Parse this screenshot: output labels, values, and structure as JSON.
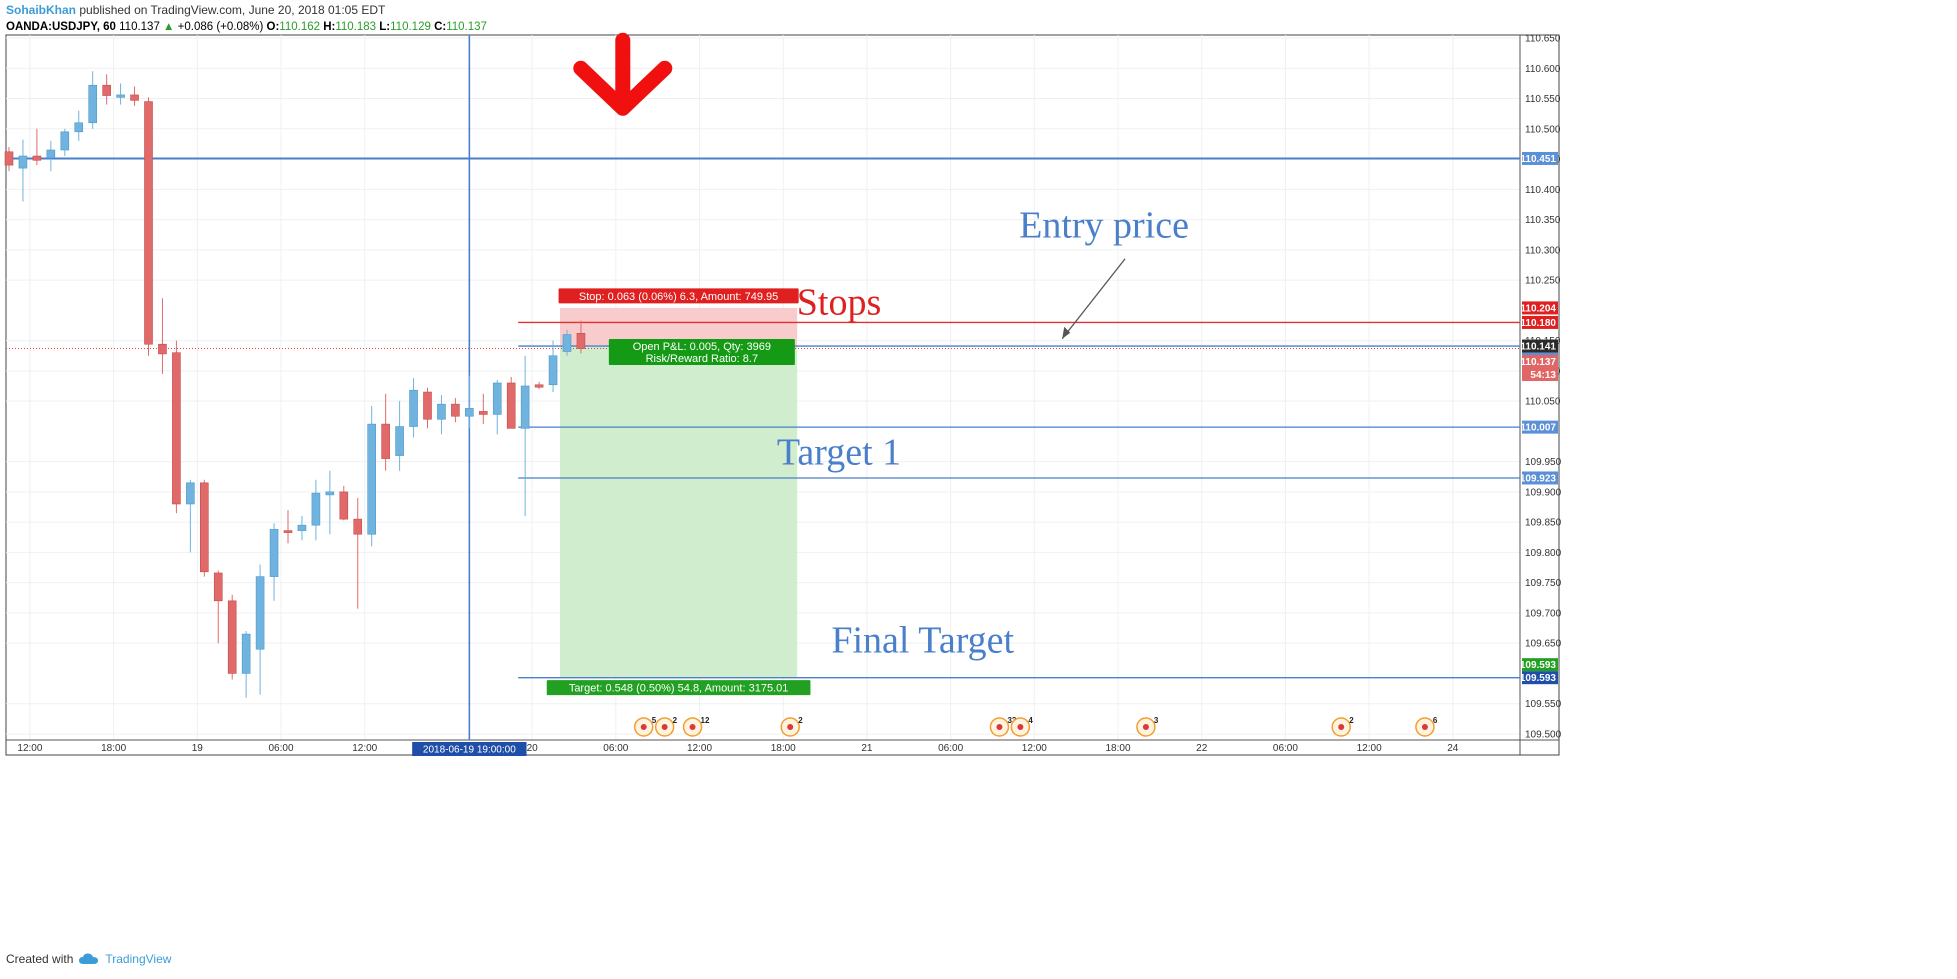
{
  "header": {
    "user": "SohaibKhan",
    "published": "published on TradingView.com, June 20, 2018 01:05 EDT",
    "symbol": "OANDA:USDJPY, 60",
    "last": "110.137",
    "change": "+0.086 (+0.08%)",
    "o_label": "O:",
    "o_value": "110.162",
    "h_label": "H:",
    "h_value": "110.183",
    "l_label": "L:",
    "l_value": "110.129",
    "c_label": "C:",
    "c_value": "110.137"
  },
  "footer": {
    "created_with": "Created with",
    "brand": "TradingView"
  },
  "chart_data": {
    "type": "candlestick",
    "ylim": [
      109.49,
      110.655
    ],
    "price_ticks": [
      "110.650",
      "110.600",
      "110.550",
      "110.500",
      "110.450",
      "110.400",
      "110.350",
      "110.300",
      "110.250",
      "110.150",
      "110.100",
      "110.050",
      "109.950",
      "109.900",
      "109.850",
      "109.800",
      "109.750",
      "109.700",
      "109.650",
      "109.550",
      "109.500"
    ],
    "time_labels": [
      {
        "t": 1.5,
        "label": "12:00"
      },
      {
        "t": 7.5,
        "label": "18:00"
      },
      {
        "t": 13.5,
        "label": "19"
      },
      {
        "t": 19.5,
        "label": "06:00"
      },
      {
        "t": 25.5,
        "label": "12:00"
      },
      {
        "t": 37.5,
        "label": "20"
      },
      {
        "t": 43.5,
        "label": "06:00"
      },
      {
        "t": 49.5,
        "label": "12:00"
      },
      {
        "t": 55.5,
        "label": "18:00"
      },
      {
        "t": 61.5,
        "label": "21"
      },
      {
        "t": 67.5,
        "label": "06:00"
      },
      {
        "t": 73.5,
        "label": "12:00"
      },
      {
        "t": 79.5,
        "label": "18:00"
      },
      {
        "t": 85.5,
        "label": "22"
      },
      {
        "t": 91.5,
        "label": "06:00"
      },
      {
        "t": 97.5,
        "label": "12:00"
      },
      {
        "t": 103.5,
        "label": "24"
      }
    ],
    "cursor": {
      "t": 33.0,
      "label": "2018-06-19 19:00:00"
    },
    "candles": [
      {
        "t": 0,
        "o": 110.462,
        "h": 110.47,
        "l": 110.43,
        "c": 110.44
      },
      {
        "t": 1,
        "o": 110.435,
        "h": 110.482,
        "l": 110.38,
        "c": 110.455
      },
      {
        "t": 2,
        "o": 110.455,
        "h": 110.5,
        "l": 110.44,
        "c": 110.448
      },
      {
        "t": 3,
        "o": 110.452,
        "h": 110.48,
        "l": 110.43,
        "c": 110.465
      },
      {
        "t": 4,
        "o": 110.465,
        "h": 110.5,
        "l": 110.455,
        "c": 110.495
      },
      {
        "t": 5,
        "o": 110.495,
        "h": 110.53,
        "l": 110.48,
        "c": 110.51
      },
      {
        "t": 6,
        "o": 110.51,
        "h": 110.595,
        "l": 110.5,
        "c": 110.572
      },
      {
        "t": 7,
        "o": 110.572,
        "h": 110.59,
        "l": 110.54,
        "c": 110.555
      },
      {
        "t": 8,
        "o": 110.552,
        "h": 110.575,
        "l": 110.54,
        "c": 110.556
      },
      {
        "t": 9,
        "o": 110.556,
        "h": 110.57,
        "l": 110.538,
        "c": 110.547
      },
      {
        "t": 10,
        "o": 110.545,
        "h": 110.552,
        "l": 110.125,
        "c": 110.144
      },
      {
        "t": 11,
        "o": 110.144,
        "h": 110.22,
        "l": 110.095,
        "c": 110.128
      },
      {
        "t": 12,
        "o": 110.13,
        "h": 110.15,
        "l": 109.865,
        "c": 109.88
      },
      {
        "t": 13,
        "o": 109.88,
        "h": 109.92,
        "l": 109.8,
        "c": 109.915
      },
      {
        "t": 14,
        "o": 109.915,
        "h": 109.92,
        "l": 109.76,
        "c": 109.768
      },
      {
        "t": 15,
        "o": 109.766,
        "h": 109.77,
        "l": 109.65,
        "c": 109.72
      },
      {
        "t": 16,
        "o": 109.72,
        "h": 109.73,
        "l": 109.59,
        "c": 109.6
      },
      {
        "t": 17,
        "o": 109.6,
        "h": 109.67,
        "l": 109.56,
        "c": 109.665
      },
      {
        "t": 18,
        "o": 109.64,
        "h": 109.78,
        "l": 109.565,
        "c": 109.76
      },
      {
        "t": 19,
        "o": 109.76,
        "h": 109.848,
        "l": 109.72,
        "c": 109.838
      },
      {
        "t": 20,
        "o": 109.836,
        "h": 109.87,
        "l": 109.815,
        "c": 109.833
      },
      {
        "t": 21,
        "o": 109.836,
        "h": 109.86,
        "l": 109.82,
        "c": 109.845
      },
      {
        "t": 22,
        "o": 109.845,
        "h": 109.92,
        "l": 109.82,
        "c": 109.898
      },
      {
        "t": 23,
        "o": 109.895,
        "h": 109.935,
        "l": 109.83,
        "c": 109.9
      },
      {
        "t": 24,
        "o": 109.9,
        "h": 109.91,
        "l": 109.853,
        "c": 109.855
      },
      {
        "t": 25,
        "o": 109.855,
        "h": 109.89,
        "l": 109.707,
        "c": 109.83
      },
      {
        "t": 26,
        "o": 109.83,
        "h": 110.042,
        "l": 109.81,
        "c": 110.012
      },
      {
        "t": 27,
        "o": 110.012,
        "h": 110.062,
        "l": 109.935,
        "c": 109.955
      },
      {
        "t": 28,
        "o": 109.96,
        "h": 110.05,
        "l": 109.935,
        "c": 110.008
      },
      {
        "t": 29,
        "o": 110.008,
        "h": 110.088,
        "l": 109.99,
        "c": 110.068
      },
      {
        "t": 30,
        "o": 110.065,
        "h": 110.072,
        "l": 110.005,
        "c": 110.02
      },
      {
        "t": 31,
        "o": 110.02,
        "h": 110.06,
        "l": 109.995,
        "c": 110.045
      },
      {
        "t": 32,
        "o": 110.045,
        "h": 110.055,
        "l": 110.015,
        "c": 110.025
      },
      {
        "t": 33,
        "o": 110.025,
        "h": 110.092,
        "l": 110.005,
        "c": 110.038
      },
      {
        "t": 34,
        "o": 110.033,
        "h": 110.062,
        "l": 110.012,
        "c": 110.028
      },
      {
        "t": 35,
        "o": 110.028,
        "h": 110.085,
        "l": 109.995,
        "c": 110.08
      },
      {
        "t": 36,
        "o": 110.08,
        "h": 110.09,
        "l": 110.01,
        "c": 110.005
      },
      {
        "t": 37,
        "o": 110.005,
        "h": 110.125,
        "l": 109.86,
        "c": 110.075
      },
      {
        "t": 38,
        "o": 110.077,
        "h": 110.082,
        "l": 110.07,
        "c": 110.073
      },
      {
        "t": 39,
        "o": 110.077,
        "h": 110.15,
        "l": 110.065,
        "c": 110.125
      },
      {
        "t": 40,
        "o": 110.132,
        "h": 110.168,
        "l": 110.125,
        "c": 110.16
      },
      {
        "t": 41,
        "o": 110.162,
        "h": 110.183,
        "l": 110.129,
        "c": 110.137
      }
    ],
    "horizontal_lines": [
      {
        "price": 110.451,
        "color": "#4a7fc9"
      },
      {
        "price": 110.18,
        "color": "#e03030"
      },
      {
        "price": 110.141,
        "color": "#4a7fc9"
      },
      {
        "price": 110.007,
        "color": "#4a7fc9"
      },
      {
        "price": 109.923,
        "color": "#4a7fc9"
      },
      {
        "price": 109.593,
        "color": "#4a7fc9"
      }
    ],
    "price_badges": [
      {
        "price": 110.451,
        "label": "110.451",
        "bg": "#5b8fd6"
      },
      {
        "price": 110.204,
        "label": "110.204",
        "bg": "#e02020"
      },
      {
        "price": 110.18,
        "label": "110.180",
        "bg": "#e02020"
      },
      {
        "price": 110.141,
        "label": "110.141",
        "bg": "#2b2b2b"
      },
      {
        "price": 110.141,
        "label": "110.141",
        "bg": "#5b8fd6",
        "nudge": 1
      },
      {
        "price": 110.137,
        "label": "110.137",
        "bg": "#e06666",
        "nudge": 1
      },
      {
        "price": 110.137,
        "label": "54:13",
        "bg": "#e06666",
        "nudge": 2
      },
      {
        "price": 110.007,
        "label": "110.007",
        "bg": "#5b8fd6"
      },
      {
        "price": 109.923,
        "label": "109.923",
        "bg": "#5b8fd6"
      },
      {
        "price": 109.593,
        "label": "109.593",
        "bg": "#22a022",
        "nudge": -1
      },
      {
        "price": 109.593,
        "label": "109.593",
        "bg": "#1f4ea8"
      }
    ],
    "position": {
      "t_start": 39.5,
      "t_end": 56.5,
      "entry": 110.141,
      "stop": 110.204,
      "target": 109.593,
      "stop_label": "Stop: 0.063 (0.06%) 6.3, Amount: 749.95",
      "target_label": "Target: 0.548 (0.50%) 54.8, Amount: 3175.01",
      "pnl_label": "Open P&L: 0.005, Qty: 3969",
      "rr_label": "Risk/Reward Ratio: 8.7"
    },
    "annotations": [
      {
        "text": "Entry price",
        "t": 78.5,
        "price": 110.32,
        "color": "#4a7fc9"
      },
      {
        "text": "Stops",
        "t": 59.5,
        "price": 110.193,
        "color": "#e02020"
      },
      {
        "text": "Target 1",
        "t": 59.5,
        "price": 109.945,
        "color": "#4a7fc9"
      },
      {
        "text": "Final Target",
        "t": 65.5,
        "price": 109.635,
        "color": "#4a7fc9"
      }
    ],
    "event_icons": [
      {
        "t": 45.5,
        "count": "5"
      },
      {
        "t": 47.0,
        "count": "2"
      },
      {
        "t": 49.0,
        "count": "12"
      },
      {
        "t": 56.0,
        "count": "2"
      },
      {
        "t": 71.0,
        "count": "33"
      },
      {
        "t": 72.5,
        "count": "4"
      },
      {
        "t": 81.5,
        "count": "3"
      },
      {
        "t": 95.5,
        "count": "2"
      },
      {
        "t": 101.5,
        "count": "6"
      }
    ]
  }
}
